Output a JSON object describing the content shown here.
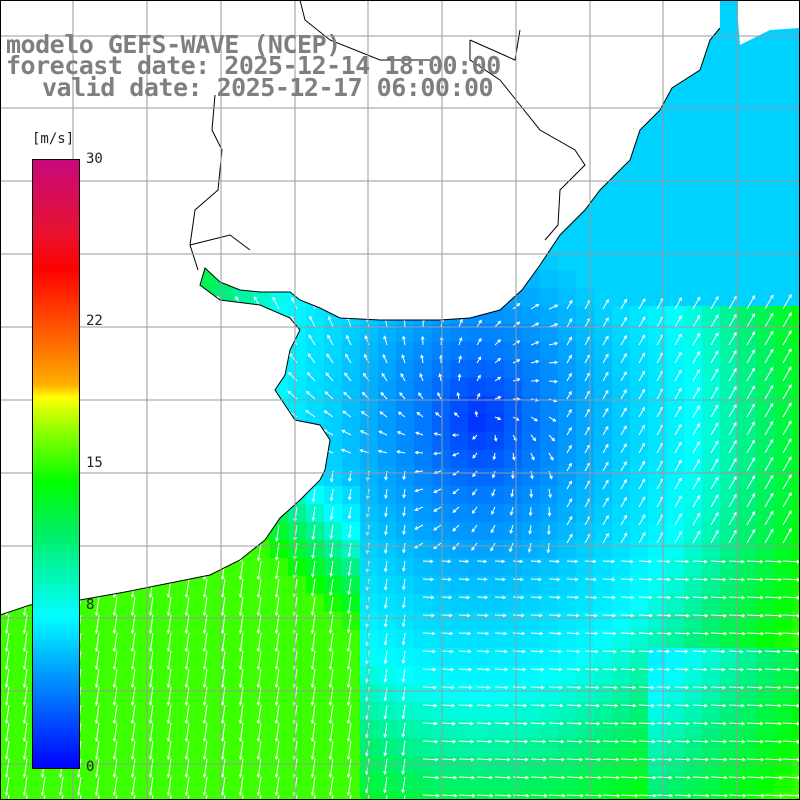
{
  "title": {
    "line1": "modelo GEFS-WAVE (NCEP)",
    "line2": "forecast date: 2025-12-14 18:00:00",
    "line3": "valid date: 2025-12-17 06:00:00"
  },
  "legend": {
    "unit": "[m/s]",
    "ticks": [
      "30",
      "22",
      "15",
      "8",
      "0"
    ],
    "tick_values": [
      30,
      22,
      15,
      8,
      0
    ],
    "min": 0,
    "max": 30,
    "colors": [
      "#0000ff",
      "#0096ff",
      "#00ffff",
      "#00ee60",
      "#00ff00",
      "#9bff00",
      "#ffff00",
      "#ffb000",
      "#ff6a00",
      "#ff0000",
      "#e8122e",
      "#c8087c"
    ]
  },
  "map": {
    "variable": "wind speed with direction arrows",
    "land_color": "#ffffff",
    "coastline_color": "#000000",
    "grid_color": "#9a9a9a",
    "arrow_color": "#ffffff",
    "wind_field": {
      "southwest_region": "green, approx. 11-13 m/s, winds toward south",
      "center_region": "dark blue, approx. 0-2 m/s, near the estuary",
      "east_region": "light blue, approx. 3-6 m/s, winds toward northeast",
      "southeast_region": "cyan to blue, approx. 4-8 m/s, winds toward east"
    }
  }
}
